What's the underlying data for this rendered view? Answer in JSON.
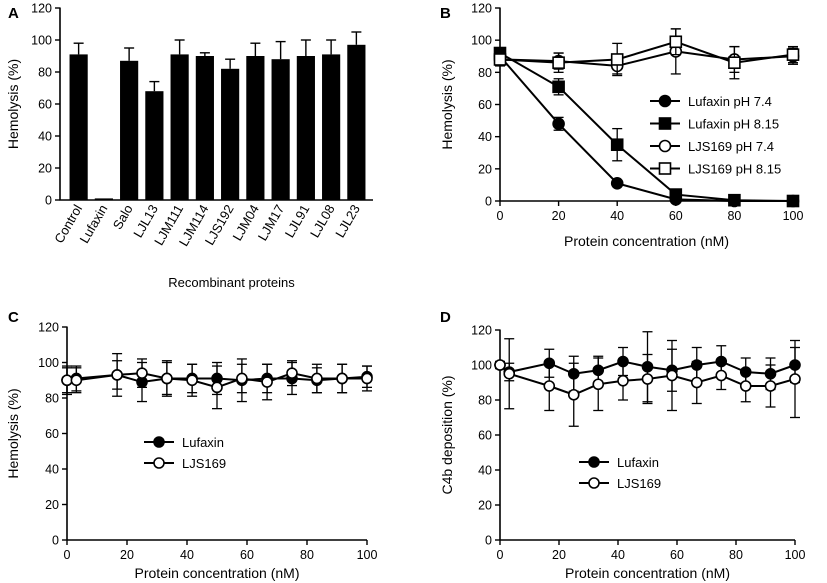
{
  "chart_data": [
    {
      "panel": "A",
      "type": "bar",
      "title": "",
      "xlabel": "Recombinant proteins",
      "ylabel": "Hemolysis (%)",
      "ylim": [
        0,
        120
      ],
      "yticks": [
        0,
        20,
        40,
        60,
        80,
        100,
        120
      ],
      "categories": [
        "Control",
        "Lufaxin",
        "Salo",
        "LJL13",
        "LJM111",
        "LJM114",
        "LJS192",
        "LJM04",
        "LJM17",
        "LJL91",
        "LJL08",
        "LJL23"
      ],
      "values": [
        91,
        1,
        87,
        68,
        91,
        90,
        82,
        90,
        88,
        90,
        91,
        97
      ],
      "errors": [
        7,
        0.5,
        8,
        6,
        9,
        2,
        6,
        8,
        11,
        10,
        9,
        8
      ]
    },
    {
      "panel": "B",
      "type": "line",
      "title": "",
      "xlabel": "Protein concentration (nM)",
      "ylabel": "Hemolysis (%)",
      "xlim": [
        0,
        100
      ],
      "ylim": [
        0,
        120
      ],
      "xticks": [
        0,
        20,
        40,
        60,
        80,
        100
      ],
      "yticks": [
        0,
        20,
        40,
        60,
        80,
        100,
        120
      ],
      "x": [
        0,
        20,
        40,
        60,
        80,
        100
      ],
      "legend_position": "right",
      "series": [
        {
          "name": "Lufaxin pH 7.4",
          "marker": "filled-circle",
          "values": [
            90,
            48,
            11,
            1,
            0,
            0
          ],
          "errors": [
            3,
            4,
            1,
            0.5,
            0,
            0
          ]
        },
        {
          "name": "Lufaxin pH 8.15",
          "marker": "filled-square",
          "values": [
            92,
            71,
            35,
            4,
            0.5,
            0
          ],
          "errors": [
            3,
            5,
            10,
            2,
            0,
            0
          ]
        },
        {
          "name": "LJS169 pH 7.4",
          "marker": "open-circle",
          "values": [
            88,
            87,
            84,
            93,
            88,
            90
          ],
          "errors": [
            4,
            5,
            5,
            14,
            8,
            5
          ]
        },
        {
          "name": "LJS169 pH 8.15",
          "marker": "open-square",
          "values": [
            88,
            86,
            88,
            99,
            86,
            91
          ],
          "errors": [
            4,
            6,
            10,
            8,
            10,
            5
          ]
        }
      ]
    },
    {
      "panel": "C",
      "type": "line",
      "title": "",
      "xlabel": "Protein concentration (nM)",
      "ylabel": "Hemolysis (%)",
      "xlim": [
        0,
        100
      ],
      "ylim": [
        0,
        120
      ],
      "xticks": [
        0,
        20,
        40,
        60,
        80,
        100
      ],
      "yticks": [
        0,
        20,
        40,
        60,
        80,
        100,
        120
      ],
      "x": [
        0,
        3.125,
        16.7,
        25,
        33.3,
        41.7,
        50,
        58.3,
        66.7,
        75,
        83.3,
        91.7,
        100
      ],
      "legend_position": "center-left",
      "series": [
        {
          "name": "Lufaxin",
          "marker": "filled-circle",
          "values": [
            90,
            91,
            93,
            89,
            91,
            91,
            91,
            90,
            91,
            91,
            90,
            91,
            92
          ],
          "errors": [
            7,
            7,
            8,
            11,
            9,
            8,
            9,
            12,
            8,
            9,
            7,
            8,
            6
          ]
        },
        {
          "name": "LJS169",
          "marker": "open-circle",
          "values": [
            90,
            90,
            93,
            94,
            91,
            90,
            86,
            91,
            89,
            94,
            91,
            91,
            91
          ],
          "errors": [
            8,
            7,
            12,
            8,
            10,
            9,
            12,
            8,
            10,
            7,
            8,
            8,
            7
          ]
        }
      ]
    },
    {
      "panel": "D",
      "type": "line",
      "title": "",
      "xlabel": "Protein concentration (nM)",
      "ylabel": "C4b deposition (%)",
      "xlim": [
        0,
        100
      ],
      "ylim": [
        0,
        120
      ],
      "xticks": [
        0,
        20,
        40,
        60,
        80,
        100
      ],
      "yticks": [
        0,
        20,
        40,
        60,
        80,
        100,
        120
      ],
      "x": [
        0,
        3.125,
        16.7,
        25,
        33.3,
        41.7,
        50,
        58.3,
        66.7,
        75,
        83.3,
        91.7,
        100
      ],
      "legend_position": "center-bottom",
      "series": [
        {
          "name": "Lufaxin",
          "marker": "filled-circle",
          "values": [
            100,
            96,
            101,
            95,
            97,
            102,
            99,
            97,
            100,
            102,
            96,
            95,
            100
          ],
          "errors": [
            2,
            5,
            8,
            10,
            8,
            8,
            20,
            12,
            10,
            9,
            8,
            9,
            10
          ]
        },
        {
          "name": "LJS169",
          "marker": "open-circle",
          "values": [
            100,
            95,
            88,
            83,
            89,
            91,
            92,
            94,
            90,
            94,
            88,
            88,
            92
          ],
          "errors": [
            2,
            20,
            14,
            18,
            15,
            11,
            14,
            20,
            12,
            8,
            9,
            12,
            22
          ]
        }
      ]
    }
  ]
}
